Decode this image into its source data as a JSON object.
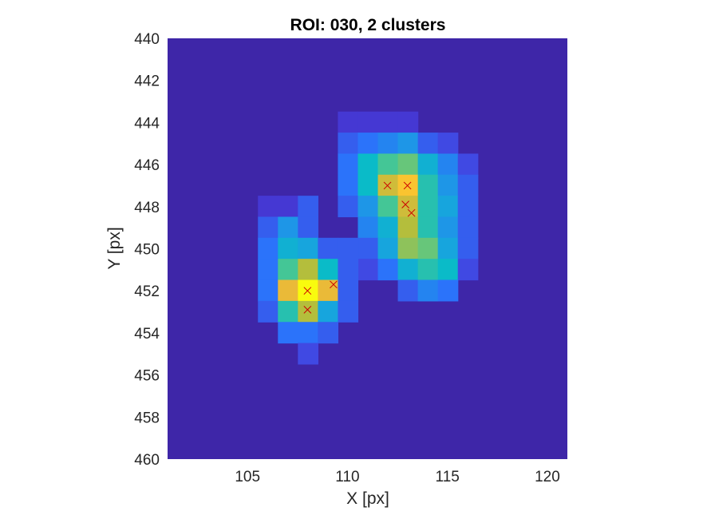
{
  "chart_data": {
    "type": "heatmap",
    "title": "ROI: 030, 2 clusters",
    "xlabel": "X [px]",
    "ylabel": "Y [px]",
    "xlim": [
      101,
      121
    ],
    "ylim": [
      440,
      460
    ],
    "y_reversed": true,
    "x_ticks": [
      105,
      110,
      115,
      120
    ],
    "y_ticks": [
      440,
      442,
      444,
      446,
      448,
      450,
      452,
      454,
      456,
      458,
      460
    ],
    "x_tick_labels": [
      "105",
      "110",
      "115",
      "120"
    ],
    "y_tick_labels": [
      "440",
      "442",
      "444",
      "446",
      "448",
      "450",
      "452",
      "454",
      "456",
      "458",
      "460"
    ],
    "colormap": "parula",
    "background_color": "#3e26a8",
    "pixels": [
      {
        "x": 110,
        "y": 444,
        "v": 0.1
      },
      {
        "x": 111,
        "y": 444,
        "v": 0.1
      },
      {
        "x": 112,
        "y": 444,
        "v": 0.1
      },
      {
        "x": 113,
        "y": 444,
        "v": 0.1
      },
      {
        "x": 110,
        "y": 445,
        "v": 0.2
      },
      {
        "x": 111,
        "y": 445,
        "v": 0.25
      },
      {
        "x": 112,
        "y": 445,
        "v": 0.3
      },
      {
        "x": 113,
        "y": 445,
        "v": 0.35
      },
      {
        "x": 114,
        "y": 445,
        "v": 0.2
      },
      {
        "x": 115,
        "y": 445,
        "v": 0.15
      },
      {
        "x": 110,
        "y": 446,
        "v": 0.25
      },
      {
        "x": 111,
        "y": 446,
        "v": 0.5
      },
      {
        "x": 112,
        "y": 446,
        "v": 0.6
      },
      {
        "x": 113,
        "y": 446,
        "v": 0.65
      },
      {
        "x": 114,
        "y": 446,
        "v": 0.45
      },
      {
        "x": 115,
        "y": 446,
        "v": 0.3
      },
      {
        "x": 116,
        "y": 446,
        "v": 0.15
      },
      {
        "x": 110,
        "y": 447,
        "v": 0.25
      },
      {
        "x": 111,
        "y": 447,
        "v": 0.5
      },
      {
        "x": 112,
        "y": 447,
        "v": 0.8
      },
      {
        "x": 113,
        "y": 447,
        "v": 0.9
      },
      {
        "x": 114,
        "y": 447,
        "v": 0.55
      },
      {
        "x": 115,
        "y": 447,
        "v": 0.35
      },
      {
        "x": 116,
        "y": 447,
        "v": 0.2
      },
      {
        "x": 110,
        "y": 448,
        "v": 0.2
      },
      {
        "x": 111,
        "y": 448,
        "v": 0.35
      },
      {
        "x": 112,
        "y": 448,
        "v": 0.6
      },
      {
        "x": 113,
        "y": 448,
        "v": 0.8
      },
      {
        "x": 114,
        "y": 448,
        "v": 0.55
      },
      {
        "x": 115,
        "y": 448,
        "v": 0.4
      },
      {
        "x": 116,
        "y": 448,
        "v": 0.2
      },
      {
        "x": 111,
        "y": 449,
        "v": 0.3
      },
      {
        "x": 112,
        "y": 449,
        "v": 0.45
      },
      {
        "x": 113,
        "y": 449,
        "v": 0.75
      },
      {
        "x": 114,
        "y": 449,
        "v": 0.55
      },
      {
        "x": 115,
        "y": 449,
        "v": 0.35
      },
      {
        "x": 116,
        "y": 449,
        "v": 0.2
      },
      {
        "x": 111,
        "y": 450,
        "v": 0.2
      },
      {
        "x": 112,
        "y": 450,
        "v": 0.4
      },
      {
        "x": 113,
        "y": 450,
        "v": 0.7
      },
      {
        "x": 114,
        "y": 450,
        "v": 0.65
      },
      {
        "x": 115,
        "y": 450,
        "v": 0.4
      },
      {
        "x": 116,
        "y": 450,
        "v": 0.2
      },
      {
        "x": 111,
        "y": 451,
        "v": 0.15
      },
      {
        "x": 112,
        "y": 451,
        "v": 0.25
      },
      {
        "x": 113,
        "y": 451,
        "v": 0.45
      },
      {
        "x": 114,
        "y": 451,
        "v": 0.55
      },
      {
        "x": 115,
        "y": 451,
        "v": 0.5
      },
      {
        "x": 116,
        "y": 451,
        "v": 0.15
      },
      {
        "x": 113,
        "y": 452,
        "v": 0.2
      },
      {
        "x": 114,
        "y": 452,
        "v": 0.3
      },
      {
        "x": 115,
        "y": 452,
        "v": 0.25
      },
      {
        "x": 106,
        "y": 448,
        "v": 0.1
      },
      {
        "x": 107,
        "y": 448,
        "v": 0.1
      },
      {
        "x": 108,
        "y": 448,
        "v": 0.2
      },
      {
        "x": 106,
        "y": 449,
        "v": 0.2
      },
      {
        "x": 107,
        "y": 449,
        "v": 0.35
      },
      {
        "x": 108,
        "y": 449,
        "v": 0.2
      },
      {
        "x": 106,
        "y": 450,
        "v": 0.25
      },
      {
        "x": 107,
        "y": 450,
        "v": 0.45
      },
      {
        "x": 108,
        "y": 450,
        "v": 0.4
      },
      {
        "x": 109,
        "y": 450,
        "v": 0.2
      },
      {
        "x": 110,
        "y": 450,
        "v": 0.2
      },
      {
        "x": 106,
        "y": 451,
        "v": 0.25
      },
      {
        "x": 107,
        "y": 451,
        "v": 0.6
      },
      {
        "x": 108,
        "y": 451,
        "v": 0.75
      },
      {
        "x": 109,
        "y": 451,
        "v": 0.5
      },
      {
        "x": 110,
        "y": 451,
        "v": 0.2
      },
      {
        "x": 106,
        "y": 452,
        "v": 0.25
      },
      {
        "x": 107,
        "y": 452,
        "v": 0.85
      },
      {
        "x": 108,
        "y": 452,
        "v": 1.0
      },
      {
        "x": 109,
        "y": 452,
        "v": 0.85
      },
      {
        "x": 110,
        "y": 452,
        "v": 0.2
      },
      {
        "x": 106,
        "y": 453,
        "v": 0.2
      },
      {
        "x": 107,
        "y": 453,
        "v": 0.55
      },
      {
        "x": 108,
        "y": 453,
        "v": 0.75
      },
      {
        "x": 109,
        "y": 453,
        "v": 0.4
      },
      {
        "x": 110,
        "y": 453,
        "v": 0.2
      },
      {
        "x": 107,
        "y": 454,
        "v": 0.25
      },
      {
        "x": 108,
        "y": 454,
        "v": 0.25
      },
      {
        "x": 109,
        "y": 454,
        "v": 0.2
      },
      {
        "x": 108,
        "y": 455,
        "v": 0.15
      }
    ],
    "markers": [
      {
        "x": 112.0,
        "y": 447.0
      },
      {
        "x": 113.0,
        "y": 447.0
      },
      {
        "x": 112.9,
        "y": 447.9
      },
      {
        "x": 113.2,
        "y": 448.3
      },
      {
        "x": 108.0,
        "y": 452.0
      },
      {
        "x": 109.3,
        "y": 451.7
      },
      {
        "x": 108.0,
        "y": 452.9
      }
    ],
    "marker_symbol": "x",
    "marker_color": "#cc0000"
  }
}
